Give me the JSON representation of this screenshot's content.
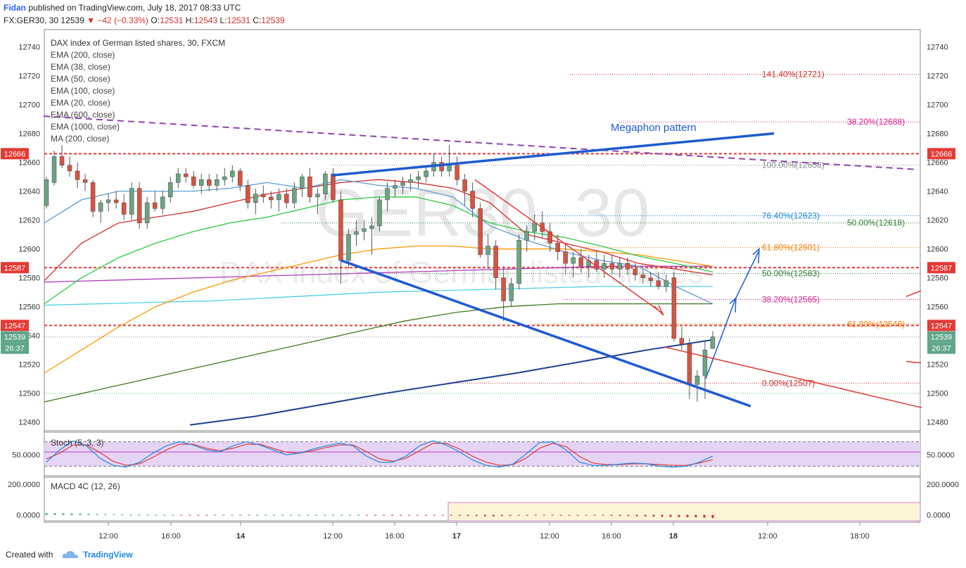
{
  "header": {
    "author": "Fidan",
    "published": "published on TradingView.com, July 18, 2017 08:33 UTC",
    "symbol": "FX:GER30, 30",
    "last": "12539",
    "change": "▼ −42 (−0.33%)",
    "o_label": "O:",
    "o_value": "12531",
    "h_label": "H:",
    "h_value": "12543",
    "l_label": "L:",
    "l_value": "12531",
    "c_label": "C:",
    "c_value": "12539"
  },
  "footer": {
    "created_with": "Created with",
    "brand": "TradingView"
  },
  "colors": {
    "up": "#6ba583",
    "down": "#d75442",
    "ema200": "#1f3f8f",
    "ema38": "#d32f2f",
    "ema50": "#2ecc40",
    "ema100": "#ff9800",
    "ema20": "#5d9ed9",
    "ema600": "#3c7a1e",
    "ema1000": "#b040c0",
    "ma200": "#4dd0e1",
    "blue_lines": "#1e5bd0",
    "red_lines": "#e53935"
  },
  "chart_data": [
    {
      "type": "candlestick",
      "title": "DAX index of German listed shares, 30, FXCM",
      "watermark": [
        "GER30, 30",
        "DAX index of German listed shares"
      ],
      "legend": [
        "EMA (200, close)",
        "EMA (38, close)",
        "EMA (50, close)",
        "EMA (100, close)",
        "EMA (20, close)",
        "EMA (600, close)",
        "EMA (1000, close)",
        "MA (200, close)"
      ],
      "x_tick_labels": [
        "12:00",
        "16:00",
        "14",
        "12:00",
        "16:00",
        "17",
        "12:00",
        "16:00",
        "18",
        "12:00",
        "18:00"
      ],
      "y_ticks": [
        12480,
        12500,
        12520,
        12540,
        12560,
        12580,
        12600,
        12620,
        12640,
        12660,
        12680,
        12700,
        12720,
        12740
      ],
      "ylim": [
        12474,
        12752
      ],
      "candles": [
        [
          12630,
          12650,
          12628,
          12648
        ],
        [
          12646,
          12668,
          12644,
          12664
        ],
        [
          12664,
          12672,
          12656,
          12658
        ],
        [
          12658,
          12664,
          12650,
          12654
        ],
        [
          12654,
          12660,
          12642,
          12648
        ],
        [
          12648,
          12652,
          12640,
          12646
        ],
        [
          12646,
          12648,
          12622,
          12626
        ],
        [
          12626,
          12634,
          12618,
          12632
        ],
        [
          12632,
          12638,
          12626,
          12634
        ],
        [
          12634,
          12640,
          12628,
          12632
        ],
        [
          12632,
          12638,
          12620,
          12624
        ],
        [
          12624,
          12646,
          12620,
          12642
        ],
        [
          12642,
          12646,
          12614,
          12618
        ],
        [
          12618,
          12636,
          12614,
          12632
        ],
        [
          12632,
          12640,
          12626,
          12628
        ],
        [
          12628,
          12640,
          12624,
          12636
        ],
        [
          12636,
          12650,
          12632,
          12646
        ],
        [
          12646,
          12656,
          12642,
          12652
        ],
        [
          12652,
          12656,
          12646,
          12650
        ],
        [
          12650,
          12654,
          12642,
          12644
        ],
        [
          12644,
          12652,
          12638,
          12648
        ],
        [
          12648,
          12652,
          12640,
          12644
        ],
        [
          12644,
          12652,
          12640,
          12648
        ],
        [
          12648,
          12656,
          12644,
          12650
        ],
        [
          12650,
          12658,
          12646,
          12654
        ],
        [
          12654,
          12656,
          12640,
          12644
        ],
        [
          12644,
          12648,
          12628,
          12632
        ],
        [
          12632,
          12642,
          12624,
          12638
        ],
        [
          12638,
          12644,
          12632,
          12636
        ],
        [
          12636,
          12640,
          12628,
          12634
        ],
        [
          12634,
          12642,
          12626,
          12638
        ],
        [
          12638,
          12642,
          12628,
          12632
        ],
        [
          12632,
          12646,
          12628,
          12642
        ],
        [
          12642,
          12652,
          12636,
          12650
        ],
        [
          12650,
          12656,
          12632,
          12636
        ],
        [
          12636,
          12642,
          12624,
          12638
        ],
        [
          12638,
          12654,
          12634,
          12652
        ],
        [
          12652,
          12656,
          12632,
          12634
        ],
        [
          12634,
          12640,
          12576,
          12592
        ],
        [
          12592,
          12614,
          12586,
          12610
        ],
        [
          12610,
          12620,
          12602,
          12612
        ],
        [
          12612,
          12620,
          12606,
          12614
        ],
        [
          12614,
          12622,
          12596,
          12616
        ],
        [
          12616,
          12636,
          12612,
          12634
        ],
        [
          12634,
          12646,
          12626,
          12642
        ],
        [
          12642,
          12648,
          12636,
          12644
        ],
        [
          12644,
          12650,
          12638,
          12646
        ],
        [
          12646,
          12652,
          12640,
          12648
        ],
        [
          12648,
          12654,
          12642,
          12650
        ],
        [
          12650,
          12658,
          12646,
          12654
        ],
        [
          12654,
          12666,
          12650,
          12660
        ],
        [
          12660,
          12664,
          12650,
          12654
        ],
        [
          12654,
          12672,
          12650,
          12658
        ],
        [
          12658,
          12664,
          12644,
          12648
        ],
        [
          12648,
          12652,
          12630,
          12640
        ],
        [
          12640,
          12646,
          12622,
          12628
        ],
        [
          12628,
          12632,
          12594,
          12596
        ],
        [
          12596,
          12610,
          12586,
          12602
        ],
        [
          12602,
          12606,
          12572,
          12580
        ],
        [
          12580,
          12588,
          12550,
          12564
        ],
        [
          12564,
          12580,
          12560,
          12576
        ],
        [
          12576,
          12610,
          12572,
          12606
        ],
        [
          12606,
          12616,
          12598,
          12612
        ],
        [
          12612,
          12624,
          12606,
          12618
        ],
        [
          12618,
          12626,
          12608,
          12612
        ],
        [
          12612,
          12618,
          12598,
          12604
        ],
        [
          12604,
          12610,
          12592,
          12598
        ],
        [
          12598,
          12604,
          12582,
          12590
        ],
        [
          12590,
          12598,
          12580,
          12594
        ],
        [
          12594,
          12600,
          12584,
          12588
        ],
        [
          12588,
          12596,
          12580,
          12592
        ],
        [
          12592,
          12598,
          12584,
          12586
        ],
        [
          12586,
          12596,
          12580,
          12590
        ],
        [
          12590,
          12596,
          12582,
          12586
        ],
        [
          12586,
          12594,
          12580,
          12590
        ],
        [
          12590,
          12594,
          12582,
          12586
        ],
        [
          12586,
          12590,
          12578,
          12582
        ],
        [
          12582,
          12586,
          12576,
          12580
        ],
        [
          12580,
          12584,
          12574,
          12578
        ],
        [
          12578,
          12584,
          12572,
          12574
        ],
        [
          12574,
          12582,
          12570,
          12578
        ],
        [
          12580,
          12584,
          12536,
          12538
        ],
        [
          12538,
          12546,
          12530,
          12534
        ],
        [
          12534,
          12538,
          12496,
          12506
        ],
        [
          12506,
          12516,
          12494,
          12512
        ],
        [
          12512,
          12536,
          12496,
          12530
        ],
        [
          12531,
          12543,
          12531,
          12539
        ]
      ],
      "ema200": {
        "x_start": 28,
        "values": [
          12478,
          12484,
          12492,
          12500,
          12507,
          12514,
          12522,
          12530,
          12537
        ]
      },
      "ema38": {
        "x_start": 0,
        "values": [
          12578,
          12604,
          12618,
          12622,
          12626,
          12632,
          12638,
          12642,
          12646,
          12648,
          12646,
          12642,
          12632,
          12610,
          12604,
          12598,
          12590,
          12586,
          12582
        ]
      },
      "ema50": {
        "x_start": 0,
        "values": [
          12562,
          12580,
          12594,
          12604,
          12612,
          12618,
          12622,
          12628,
          12634,
          12636,
          12636,
          12630,
          12618,
          12612,
          12608,
          12602,
          12595,
          12590,
          12584
        ]
      },
      "ema100": {
        "x_start": 0,
        "values": [
          12514,
          12530,
          12546,
          12560,
          12570,
          12578,
          12584,
          12590,
          12596,
          12600,
          12602,
          12602,
          12600,
          12600,
          12600,
          12598,
          12596,
          12592,
          12588
        ]
      },
      "ema20": {
        "x_start": 0,
        "values": [
          12618,
          12634,
          12640,
          12640,
          12640,
          12642,
          12646,
          12642,
          12648,
          12644,
          12642,
          12636,
          12616,
          12606,
          12598,
          12592,
          12588,
          12574,
          12562
        ]
      },
      "ema600": {
        "x_start": 0,
        "values": [
          12494,
          12502,
          12510,
          12518,
          12526,
          12534,
          12542,
          12550,
          12556,
          12560,
          12562,
          12562,
          12562,
          12562
        ]
      },
      "ema1000": {
        "x_start": 0,
        "values": [
          12577,
          12578,
          12579,
          12580,
          12581,
          12582,
          12583,
          12584,
          12585,
          12586,
          12587,
          12588,
          12588,
          12588
        ]
      },
      "ma200": {
        "x_start": 0,
        "values": [
          12561,
          12562,
          12563,
          12564,
          12566,
          12568,
          12570,
          12571,
          12572,
          12573,
          12574,
          12574,
          12574
        ]
      },
      "horizontal_levels": [
        12666,
        12587,
        12547
      ],
      "price_labels": [
        "12666",
        "12587",
        "12547",
        "12539",
        "26:37"
      ],
      "fib_labels": [
        "141.40%(12721)",
        "38.20%(12688)",
        "100.00%(12658)",
        "76.40%(12623)",
        "50.00%(12618)",
        "61.80%(12601)",
        "50.00%(12583)",
        "38.20%(12565)",
        "61.80%(12548)",
        "0.00%(12507)"
      ],
      "fib_values": [
        12721,
        12688,
        12658,
        12623,
        12618,
        12601,
        12583,
        12565,
        12548,
        12507
      ],
      "annotations": [
        "Megaphon pattern"
      ]
    },
    {
      "type": "line",
      "title": "Stoch (5, 3, 3)",
      "y_tick_labels": [
        "50.0000"
      ],
      "ylim": [
        0,
        100
      ],
      "band": [
        20,
        80
      ],
      "k_values": [
        30,
        60,
        82,
        70,
        40,
        22,
        18,
        30,
        52,
        70,
        80,
        72,
        60,
        55,
        70,
        80,
        72,
        60,
        48,
        52,
        62,
        70,
        76,
        70,
        45,
        30,
        30,
        45,
        70,
        82,
        72,
        55,
        35,
        22,
        18,
        25,
        50,
        78,
        80,
        60,
        30,
        22,
        22,
        25,
        28,
        26,
        20,
        18,
        20,
        30,
        45
      ],
      "d_values": [
        38,
        52,
        72,
        72,
        54,
        32,
        22,
        26,
        42,
        60,
        74,
        74,
        64,
        58,
        64,
        74,
        74,
        64,
        54,
        52,
        58,
        66,
        72,
        72,
        56,
        38,
        32,
        40,
        58,
        76,
        76,
        62,
        44,
        30,
        22,
        24,
        40,
        64,
        76,
        68,
        44,
        28,
        24,
        24,
        26,
        26,
        24,
        22,
        22,
        28,
        36
      ]
    },
    {
      "type": "bar",
      "title": "MACD 4C (12, 26)",
      "y_tick_labels": [
        "200.0000",
        "0.0000"
      ],
      "ylim": [
        -30,
        240
      ],
      "values": [
        12,
        11,
        10,
        9,
        8,
        7,
        6,
        5,
        4,
        3,
        2,
        1,
        1,
        0,
        0,
        0,
        -1,
        -1,
        -1,
        -1,
        0,
        0,
        0,
        0,
        0,
        0,
        0,
        0,
        0,
        0,
        0,
        0,
        0,
        0,
        0,
        0,
        0,
        0,
        -2,
        -3,
        -4,
        -5,
        -4,
        -3,
        -2,
        -2,
        -3,
        -4,
        -5,
        -6,
        -7,
        -8,
        -9,
        -10,
        -8,
        -6,
        -5,
        -4,
        -4,
        -3,
        -3,
        -3,
        -2,
        -3,
        -4,
        -4,
        -5,
        -6,
        -7,
        -8,
        -9,
        -10,
        -11,
        -12,
        -13,
        -14,
        -15,
        -16,
        -18,
        -20
      ]
    }
  ],
  "time_axis_labels": [
    "12:00",
    "16:00",
    "14",
    "12:00",
    "16:00",
    "17",
    "12:00",
    "16:00",
    "18",
    "12:00",
    "18:00"
  ]
}
